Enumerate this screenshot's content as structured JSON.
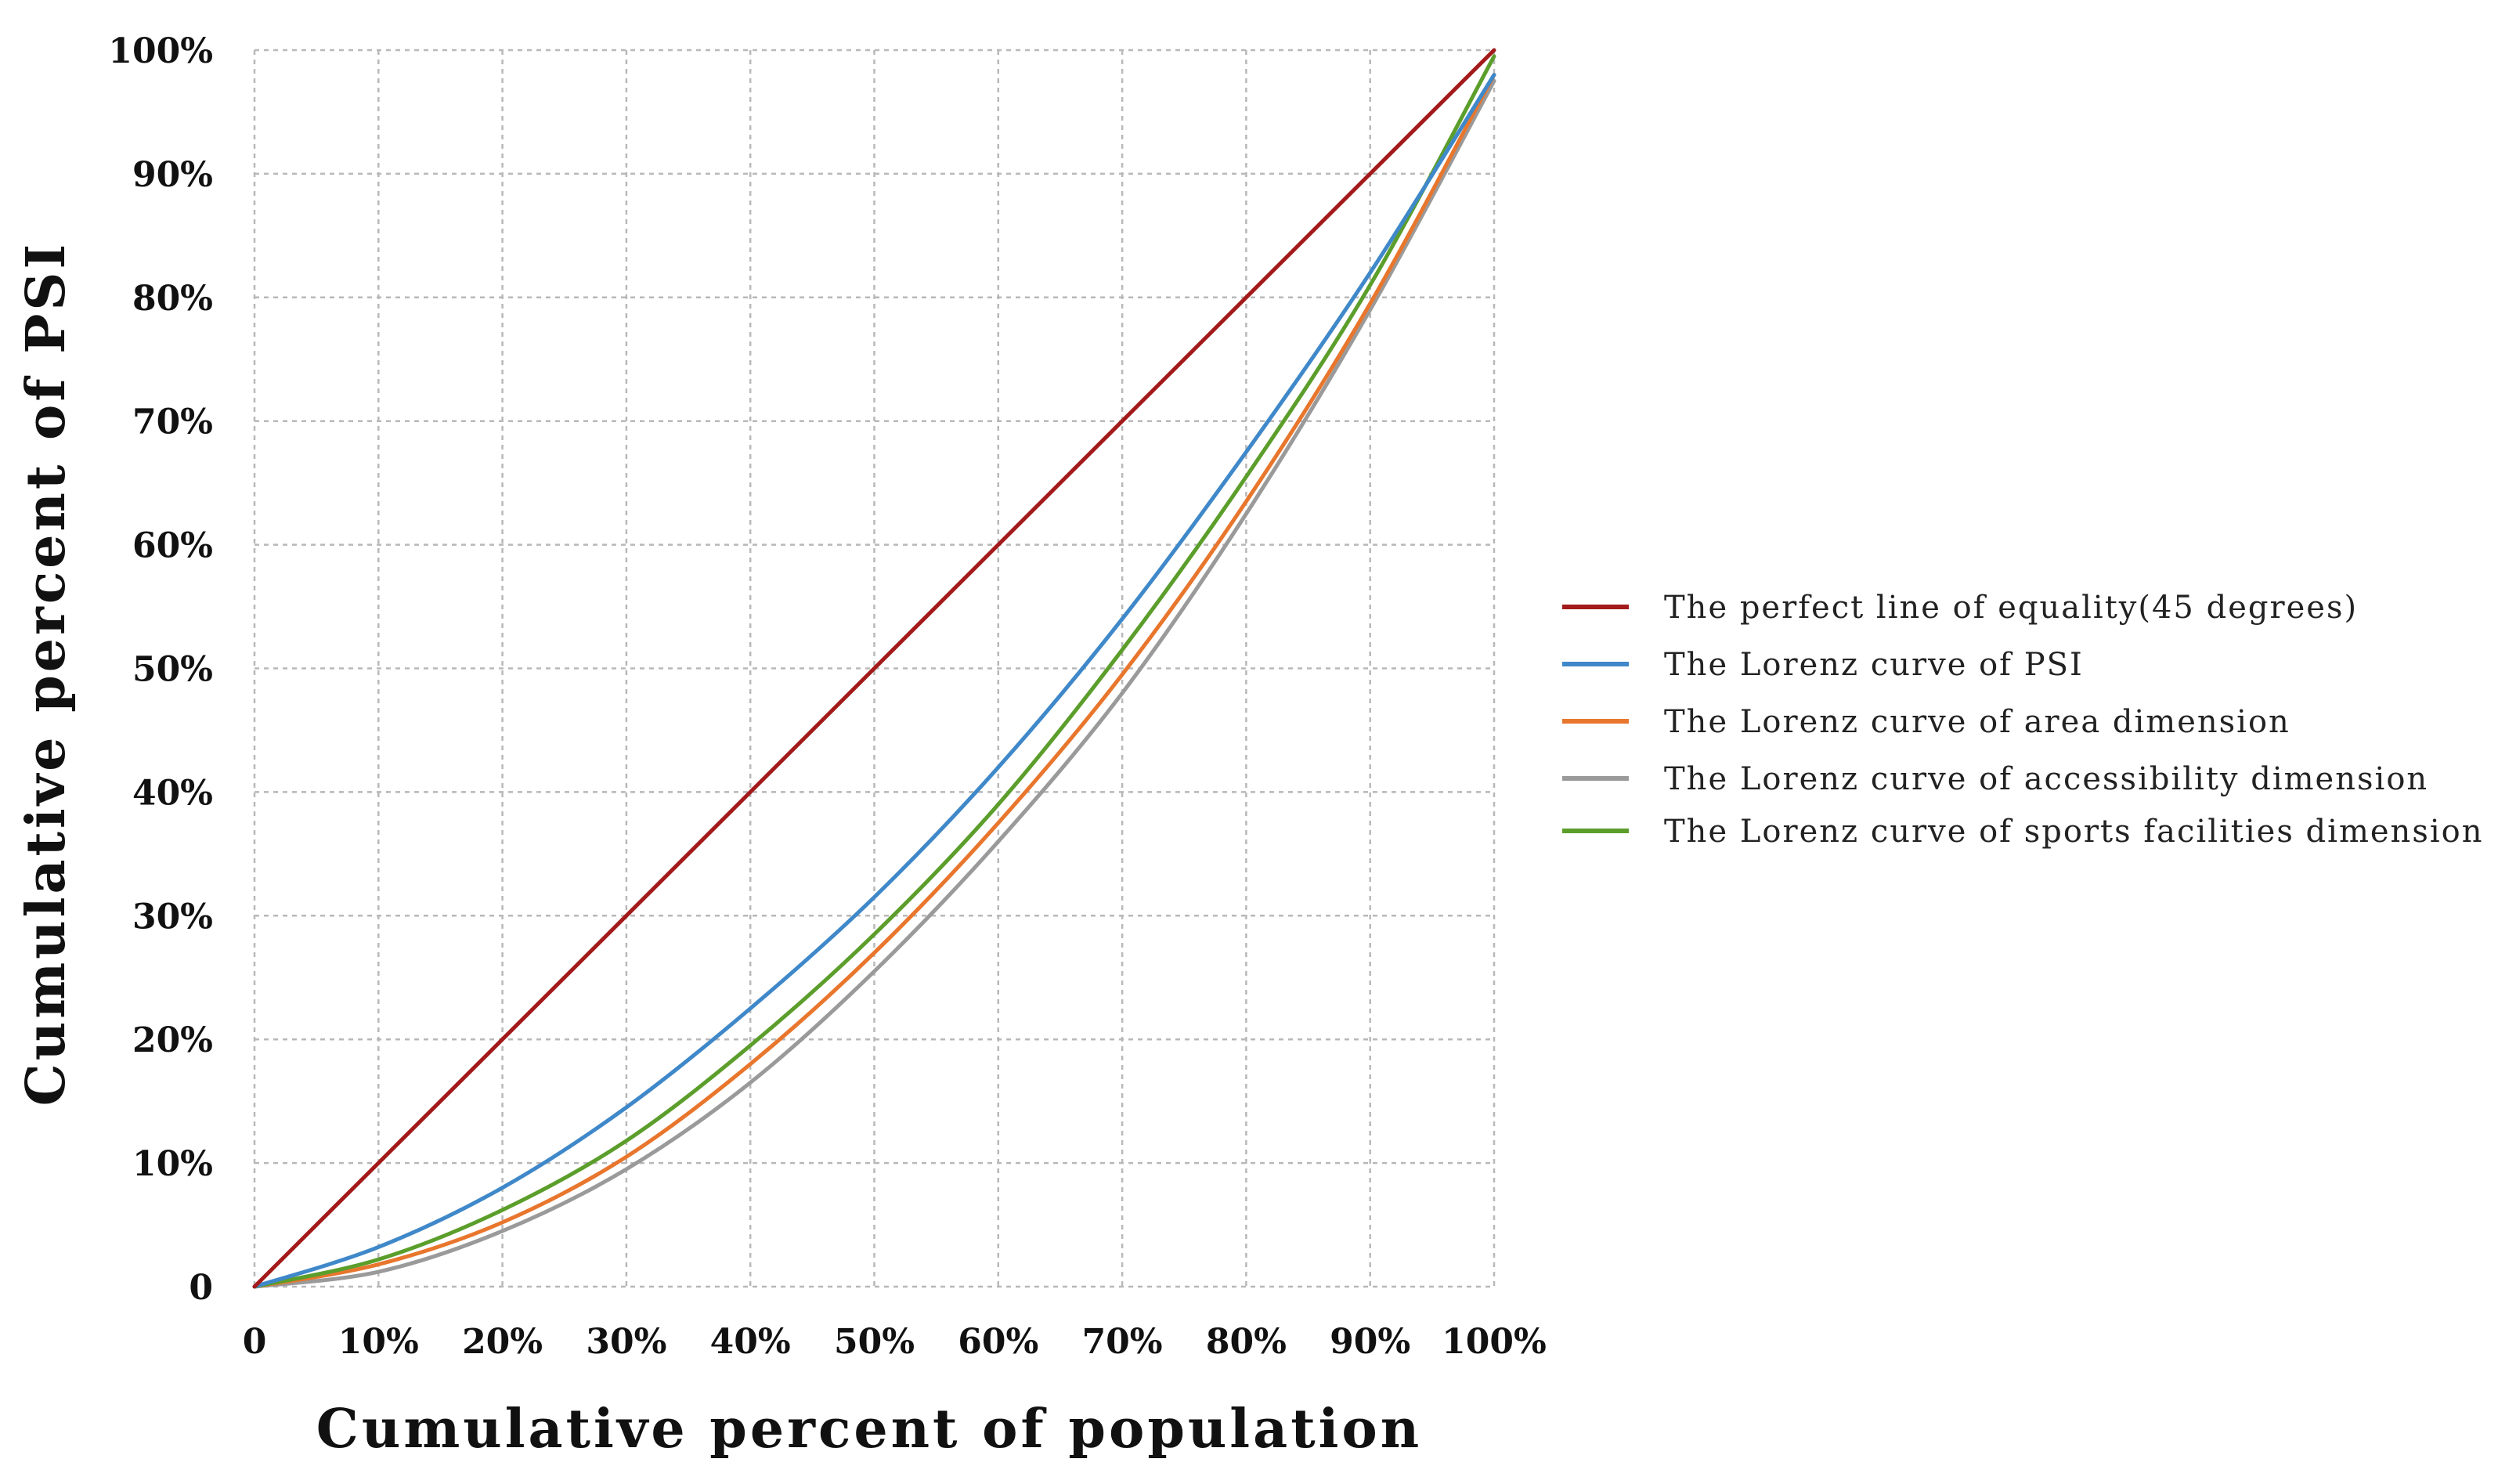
{
  "chart_data": {
    "type": "line",
    "title": "",
    "xlabel": "Cumulative percent of population",
    "ylabel": "Cumulative percent of PSI",
    "xlim": [
      0,
      100
    ],
    "ylim": [
      0,
      100
    ],
    "grid": true,
    "legend_position": "right",
    "x_ticks": [
      "0",
      "10%",
      "20%",
      "30%",
      "40%",
      "50%",
      "60%",
      "70%",
      "80%",
      "90%",
      "100%"
    ],
    "y_ticks": [
      "0",
      "10%",
      "20%",
      "30%",
      "40%",
      "50%",
      "60%",
      "70%",
      "80%",
      "90%",
      "100%"
    ],
    "x": [
      0,
      10,
      20,
      30,
      40,
      50,
      60,
      70,
      80,
      90,
      100
    ],
    "series": [
      {
        "name": "The perfect line of equality(45 degrees)",
        "color": "#a31a1a",
        "values": [
          0,
          10,
          20,
          30,
          40,
          50,
          60,
          70,
          80,
          90,
          100
        ]
      },
      {
        "name": "The Lorenz curve of PSI",
        "color": "#3f88c9",
        "values": [
          0,
          3.2,
          8.0,
          14.5,
          22.5,
          31.5,
          42.0,
          54.0,
          67.5,
          82.0,
          98.0
        ]
      },
      {
        "name": "The Lorenz curve of area dimension",
        "color": "#e8762d",
        "values": [
          0,
          1.8,
          5.2,
          10.5,
          18.0,
          27.0,
          37.5,
          49.5,
          63.5,
          79.5,
          98.0
        ]
      },
      {
        "name": "The Lorenz curve of accessibility dimension",
        "color": "#9a9a9a",
        "values": [
          0,
          1.2,
          4.5,
          9.5,
          16.5,
          25.5,
          36.0,
          48.0,
          62.5,
          79.0,
          97.5
        ]
      },
      {
        "name": "The Lorenz curve of sports facilities dimension",
        "color": "#5b9e2b",
        "values": [
          0,
          2.2,
          6.2,
          11.8,
          19.5,
          28.5,
          39.0,
          51.5,
          65.5,
          81.0,
          99.5
        ]
      }
    ]
  }
}
